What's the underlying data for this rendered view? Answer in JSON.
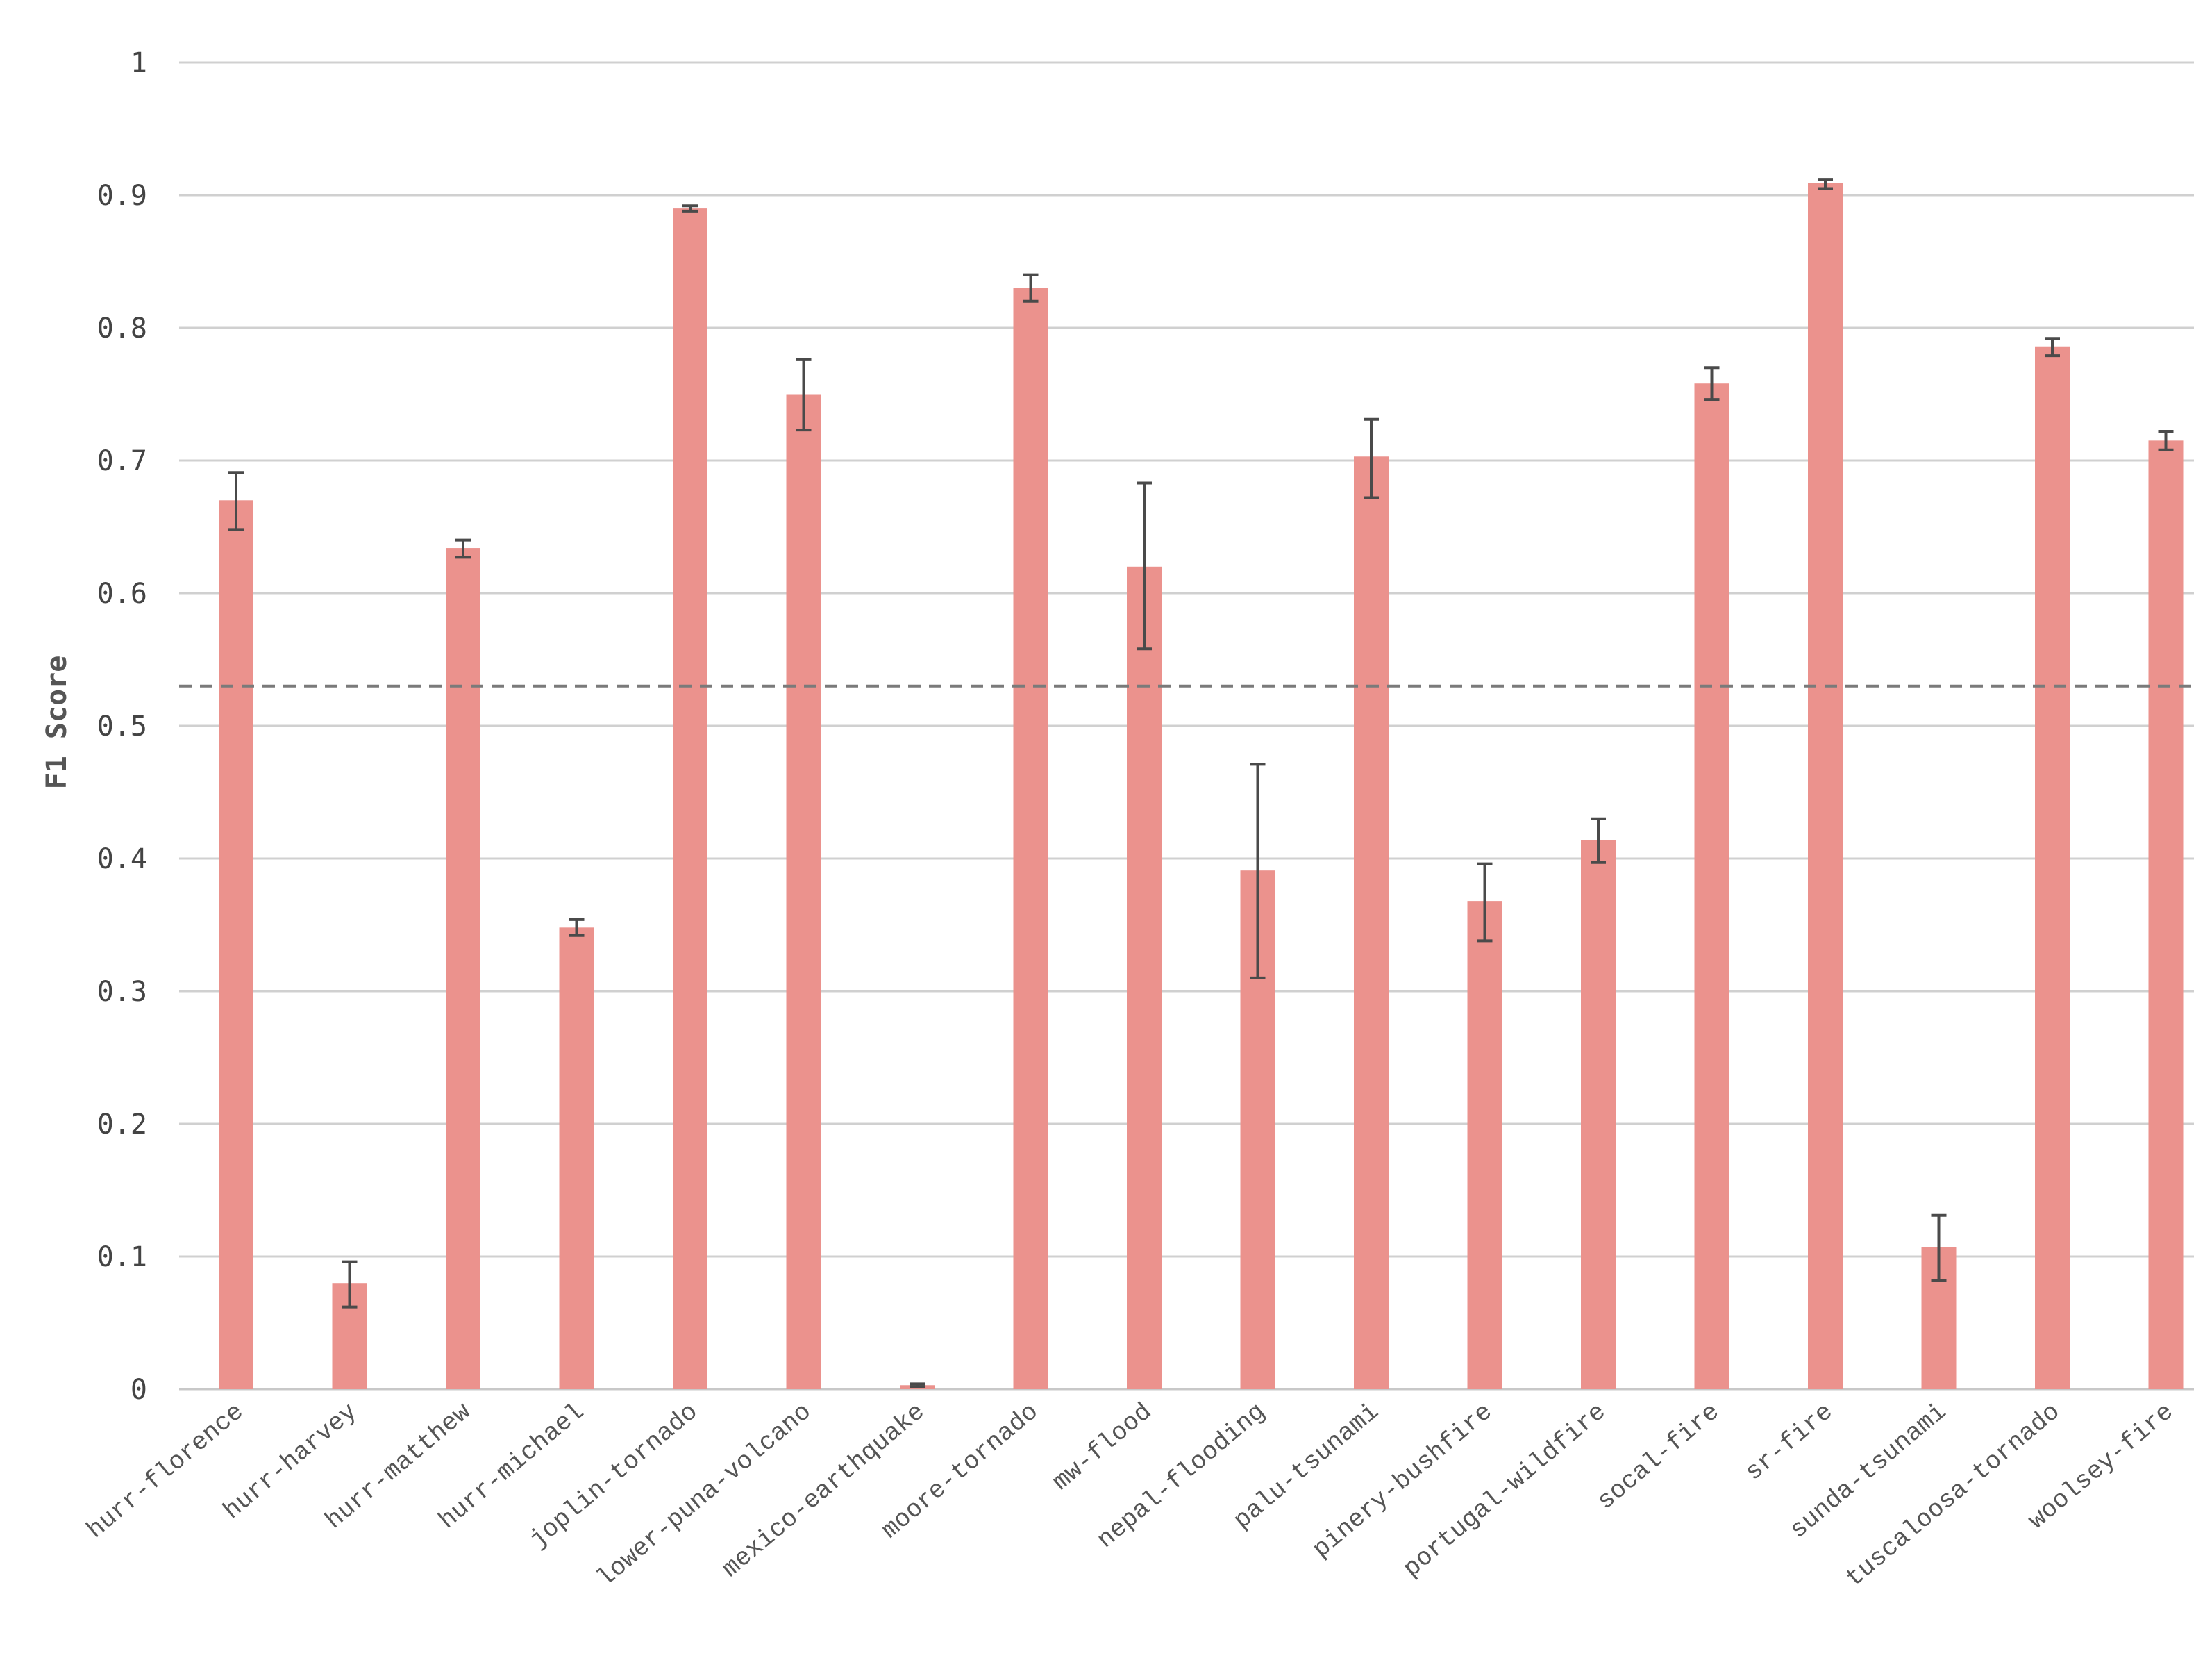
{
  "chart_data": {
    "type": "bar",
    "title": "",
    "xlabel": "",
    "ylabel": "F1 Score",
    "ylim": [
      0,
      1
    ],
    "yticks": [
      "0",
      "0.1",
      "0.2",
      "0.3",
      "0.4",
      "0.5",
      "0.6",
      "0.7",
      "0.8",
      "0.9",
      "1"
    ],
    "grid": true,
    "bar_color": "#eb928d",
    "error_bar_color": "#4a4a4a",
    "reference_line": {
      "y": 0.53,
      "style": "dashed",
      "color": "#7a7a7a"
    },
    "categories": [
      "hurr-florence",
      "hurr-harvey",
      "hurr-matthew",
      "hurr-michael",
      "joplin-tornado",
      "lower-puna-volcano",
      "mexico-earthquake",
      "moore-tornado",
      "mw-flood",
      "nepal-flooding",
      "palu-tsunami",
      "pinery-bushfire",
      "portugal-wildfire",
      "socal-fire",
      "sr-fire",
      "sunda-tsunami",
      "tuscaloosa-tornado",
      "woolsey-fire"
    ],
    "values": [
      0.67,
      0.08,
      0.634,
      0.348,
      0.89,
      0.75,
      0.003,
      0.83,
      0.62,
      0.391,
      0.703,
      0.368,
      0.414,
      0.758,
      0.909,
      0.107,
      0.786,
      0.715
    ],
    "error_low": [
      0.648,
      0.062,
      0.627,
      0.342,
      0.888,
      0.723,
      0.002,
      0.82,
      0.558,
      0.31,
      0.672,
      0.338,
      0.397,
      0.746,
      0.905,
      0.082,
      0.779,
      0.708
    ],
    "error_high": [
      0.691,
      0.096,
      0.64,
      0.354,
      0.892,
      0.776,
      0.004,
      0.84,
      0.683,
      0.471,
      0.731,
      0.396,
      0.43,
      0.77,
      0.912,
      0.131,
      0.792,
      0.722
    ]
  }
}
